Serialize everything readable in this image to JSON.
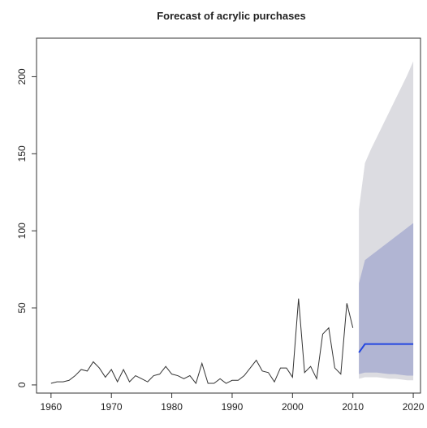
{
  "chart_data": {
    "type": "line",
    "title": "Forecast of acrylic purchases",
    "x": [
      1960,
      1961,
      1962,
      1963,
      1964,
      1965,
      1966,
      1967,
      1968,
      1969,
      1970,
      1971,
      1972,
      1973,
      1974,
      1975,
      1976,
      1977,
      1978,
      1979,
      1980,
      1981,
      1982,
      1983,
      1984,
      1985,
      1986,
      1987,
      1988,
      1989,
      1990,
      1991,
      1992,
      1993,
      1994,
      1995,
      1996,
      1997,
      1998,
      1999,
      2000,
      2001,
      2002,
      2003,
      2004,
      2005,
      2006,
      2007,
      2008,
      2009,
      2010
    ],
    "values": [
      1,
      2,
      2,
      3,
      6,
      10,
      9,
      15,
      11,
      5,
      10,
      2,
      10,
      2,
      6,
      4,
      2,
      6,
      7,
      12,
      7,
      6,
      4,
      6,
      1,
      14,
      1,
      1,
      4,
      1,
      3,
      3,
      6,
      11,
      16,
      9,
      8,
      2,
      11,
      11,
      5,
      56,
      8,
      12,
      4,
      33,
      37,
      11,
      7,
      53,
      37
    ],
    "color": "#333333",
    "forecast": {
      "x": [
        2011,
        2012,
        2013,
        2014,
        2015,
        2016,
        2017,
        2018,
        2019,
        2020
      ],
      "mean": [
        21,
        26.5,
        26.5,
        26.5,
        26.5,
        26.5,
        26.5,
        26.5,
        26.5,
        26.5
      ],
      "lo80": [
        7,
        8,
        8,
        8,
        7.5,
        7,
        7,
        6.5,
        6,
        6
      ],
      "hi80": [
        66,
        81,
        84,
        87,
        90,
        93,
        96,
        99,
        102,
        105
      ],
      "lo95": [
        4,
        5,
        5,
        5,
        4.5,
        4,
        4,
        3.5,
        3,
        3
      ],
      "hi95": [
        114,
        144,
        153,
        161,
        169,
        177,
        185,
        193,
        201,
        210
      ],
      "mean_color": "#2346e0",
      "band80_color": "#b1b5d3",
      "band95_color": "#dcdce1"
    },
    "xlim": [
      1957.6,
      2021.2
    ],
    "ylim": [
      -5.3,
      225
    ],
    "xticks": [
      1960,
      1970,
      1980,
      1990,
      2000,
      2010,
      2020
    ],
    "yticks": [
      0,
      50,
      100,
      150,
      200
    ]
  }
}
